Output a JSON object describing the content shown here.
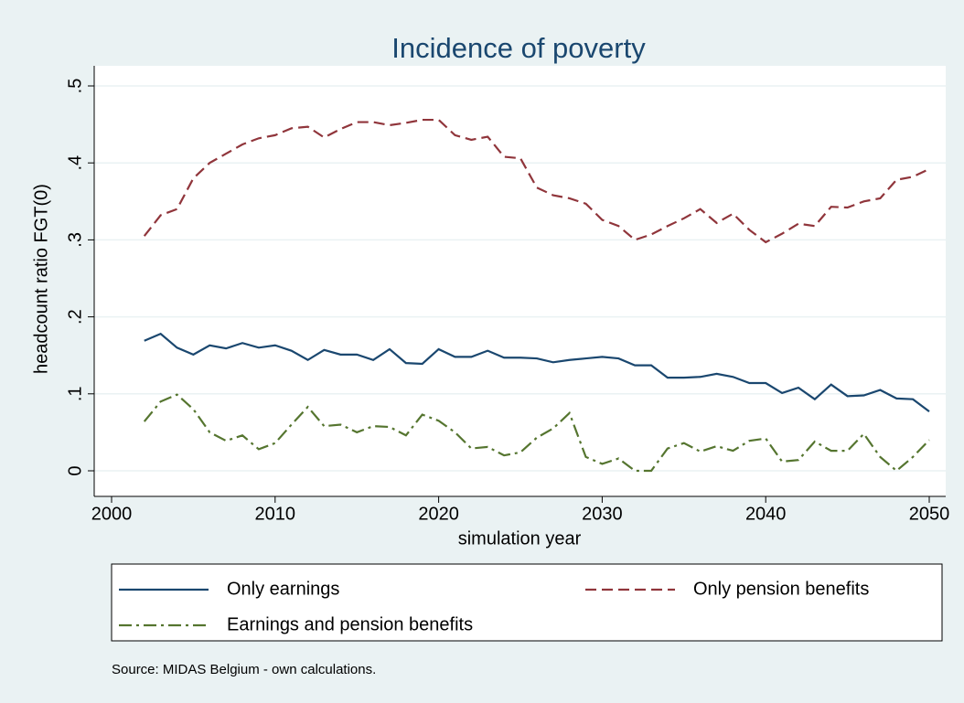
{
  "chart_data": {
    "type": "line",
    "title": "Incidence of poverty",
    "x_label": "simulation year",
    "y_label": "headcount ratio FGT(0)",
    "source": "Source: MIDAS Belgium - own calculations.",
    "x": [
      2002,
      2003,
      2004,
      2005,
      2006,
      2007,
      2008,
      2009,
      2010,
      2011,
      2012,
      2013,
      2014,
      2015,
      2016,
      2017,
      2018,
      2019,
      2020,
      2021,
      2022,
      2023,
      2024,
      2025,
      2026,
      2027,
      2028,
      2029,
      2030,
      2031,
      2032,
      2033,
      2034,
      2035,
      2036,
      2037,
      2038,
      2039,
      2040,
      2041,
      2042,
      2043,
      2044,
      2045,
      2046,
      2047,
      2048,
      2049,
      2050
    ],
    "series": [
      {
        "name": "Only earnings",
        "color": "#1a476f",
        "line_style": "solid",
        "values": [
          0.169,
          0.178,
          0.16,
          0.151,
          0.163,
          0.159,
          0.166,
          0.16,
          0.163,
          0.156,
          0.144,
          0.157,
          0.151,
          0.151,
          0.144,
          0.158,
          0.14,
          0.139,
          0.158,
          0.148,
          0.148,
          0.156,
          0.147,
          0.147,
          0.146,
          0.141,
          0.144,
          0.146,
          0.148,
          0.146,
          0.137,
          0.137,
          0.121,
          0.121,
          0.122,
          0.126,
          0.122,
          0.114,
          0.114,
          0.101,
          0.108,
          0.093,
          0.112,
          0.097,
          0.098,
          0.105,
          0.094,
          0.093,
          0.077
        ]
      },
      {
        "name": "Only pension benefits",
        "color": "#90353b",
        "line_style": "dash",
        "values": [
          0.305,
          0.332,
          0.34,
          0.38,
          0.4,
          0.412,
          0.424,
          0.432,
          0.436,
          0.445,
          0.447,
          0.433,
          0.444,
          0.453,
          0.453,
          0.449,
          0.452,
          0.456,
          0.456,
          0.436,
          0.43,
          0.434,
          0.408,
          0.406,
          0.368,
          0.358,
          0.354,
          0.347,
          0.326,
          0.318,
          0.3,
          0.307,
          0.318,
          0.328,
          0.34,
          0.322,
          0.334,
          0.313,
          0.297,
          0.308,
          0.321,
          0.318,
          0.343,
          0.342,
          0.35,
          0.354,
          0.378,
          0.382,
          0.392
        ]
      },
      {
        "name": "Earnings and pension benefits",
        "color": "#55752f",
        "line_style": "dash-dot",
        "values": [
          0.064,
          0.09,
          0.099,
          0.08,
          0.05,
          0.039,
          0.046,
          0.028,
          0.036,
          0.06,
          0.083,
          0.058,
          0.06,
          0.05,
          0.058,
          0.057,
          0.046,
          0.073,
          0.065,
          0.05,
          0.029,
          0.031,
          0.02,
          0.024,
          0.043,
          0.055,
          0.075,
          0.018,
          0.009,
          0.016,
          0,
          0,
          0.029,
          0.036,
          0.025,
          0.032,
          0.026,
          0.039,
          0.042,
          0.012,
          0.014,
          0.038,
          0.026,
          0.026,
          0.048,
          0.018,
          0,
          0.018,
          0.04
        ]
      }
    ],
    "xlim": [
      2000,
      2050
    ],
    "xticks": [
      2000,
      2010,
      2020,
      2030,
      2040,
      2050
    ],
    "ylim": [
      0,
      0.5
    ],
    "yticks": [
      0,
      {
        "value": 0.1,
        "label": ".1"
      },
      {
        "value": 0.2,
        "label": ".2"
      },
      {
        "value": 0.3,
        "label": ".3"
      },
      {
        "value": 0.4,
        "label": ".4"
      },
      {
        "value": 0.5,
        "label": ".5"
      }
    ],
    "grid": true
  }
}
